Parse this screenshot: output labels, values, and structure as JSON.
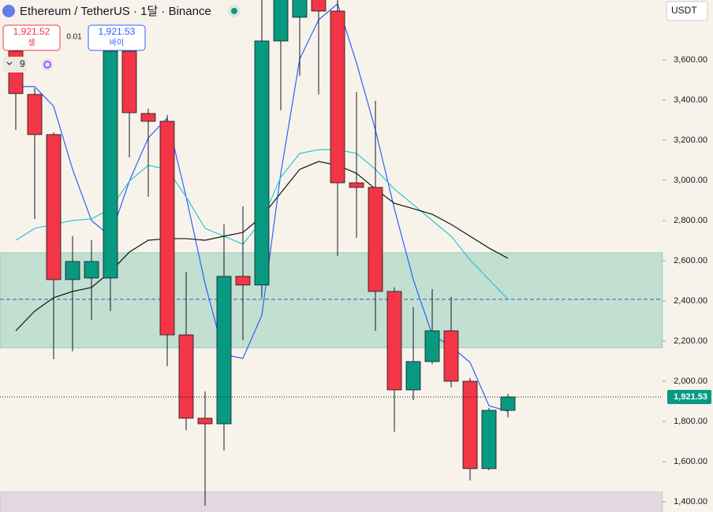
{
  "header": {
    "title": "Ethereum / TetherUS · 1달 · Binance",
    "sell_price": "1,921.52",
    "sell_label": "셀",
    "spread": "0.01",
    "buy_price": "1,921.53",
    "buy_label": "바이",
    "indicator_count": "9",
    "currency": "USDT"
  },
  "chart_data": {
    "type": "candlestick",
    "ylim": [
      1349,
      3898
    ],
    "yticks": [
      {
        "value": 1400,
        "label": "1,400.00"
      },
      {
        "value": 1600,
        "label": "1,600.00"
      },
      {
        "value": 1800,
        "label": "1,800.00"
      },
      {
        "value": 2000,
        "label": "2,000.00"
      },
      {
        "value": 2200,
        "label": "2,200.00"
      },
      {
        "value": 2400,
        "label": "2,400.00"
      },
      {
        "value": 2600,
        "label": "2,600.00"
      },
      {
        "value": 2800,
        "label": "2,800.00"
      },
      {
        "value": 3000,
        "label": "3,000.00"
      },
      {
        "value": 3200,
        "label": "3,200.00"
      },
      {
        "value": 3400,
        "label": "3,400.00"
      },
      {
        "value": 3600,
        "label": "3,600.00"
      }
    ],
    "up_color": "#089981",
    "down_color": "#f23645",
    "candles": [
      {
        "open": 3643,
        "high": 3683,
        "low": 3251,
        "close": 3432
      },
      {
        "open": 3428,
        "high": 3459,
        "low": 2808,
        "close": 3228
      },
      {
        "open": 3228,
        "high": 3239,
        "low": 2110,
        "close": 2506
      },
      {
        "open": 2506,
        "high": 2722,
        "low": 2149,
        "close": 2596
      },
      {
        "open": 2514,
        "high": 2702,
        "low": 2306,
        "close": 2596
      },
      {
        "open": 2514,
        "high": 3742,
        "low": 2349,
        "close": 3643
      },
      {
        "open": 3643,
        "high": 3742,
        "low": 3114,
        "close": 3337
      },
      {
        "open": 3333,
        "high": 3357,
        "low": 2918,
        "close": 3294
      },
      {
        "open": 3294,
        "high": 3326,
        "low": 2075,
        "close": 2231
      },
      {
        "open": 2231,
        "high": 2545,
        "low": 1757,
        "close": 1816
      },
      {
        "open": 1816,
        "high": 1949,
        "low": 1380,
        "close": 1788
      },
      {
        "open": 1788,
        "high": 2781,
        "low": 1655,
        "close": 2522
      },
      {
        "open": 2522,
        "high": 2871,
        "low": 2204,
        "close": 2479
      },
      {
        "open": 2479,
        "high": 3900,
        "low": 2416,
        "close": 3694
      },
      {
        "open": 3694,
        "high": 3950,
        "low": 3349,
        "close": 3920
      },
      {
        "open": 3812,
        "high": 3960,
        "low": 3520,
        "close": 3930
      },
      {
        "open": 3930,
        "high": 3960,
        "low": 3428,
        "close": 3843
      },
      {
        "open": 3843,
        "high": 3900,
        "low": 2624,
        "close": 2988
      },
      {
        "open": 2988,
        "high": 3439,
        "low": 2714,
        "close": 2965
      },
      {
        "open": 2965,
        "high": 3396,
        "low": 2251,
        "close": 2447
      },
      {
        "open": 2447,
        "high": 2467,
        "low": 1749,
        "close": 1957
      },
      {
        "open": 1957,
        "high": 2369,
        "low": 1906,
        "close": 2098
      },
      {
        "open": 2098,
        "high": 2459,
        "low": 2086,
        "close": 2251
      },
      {
        "open": 2251,
        "high": 2420,
        "low": 1969,
        "close": 2000
      },
      {
        "open": 2000,
        "high": 2016,
        "low": 1506,
        "close": 1565
      },
      {
        "open": 1565,
        "high": 1867,
        "low": 1557,
        "close": 1855
      },
      {
        "open": 1855,
        "high": 1937,
        "low": 1820,
        "close": 1921.53
      }
    ],
    "series": [
      {
        "color": "#2962ff",
        "values": [
          3467,
          3467,
          3369,
          3055,
          2800,
          2722,
          2996,
          3212,
          3310,
          2918,
          2486,
          2133,
          2114,
          2329,
          3035,
          3604,
          3800,
          3879,
          3585,
          3251,
          2859,
          2506,
          2231,
          2173,
          2094,
          1878,
          1851
        ]
      },
      {
        "color": "#26c6da",
        "values": [
          2702,
          2761,
          2781,
          2800,
          2808,
          2859,
          2996,
          3075,
          3055,
          2918,
          2761,
          2722,
          2682,
          2800,
          3016,
          3134,
          3153,
          3153,
          3134,
          3055,
          2957,
          2879,
          2800,
          2722,
          2604,
          2506,
          2408
        ]
      },
      {
        "color": "#0b1a10",
        "values": [
          2251,
          2349,
          2416,
          2447,
          2467,
          2545,
          2643,
          2702,
          2710,
          2710,
          2702,
          2722,
          2741,
          2820,
          2937,
          3055,
          3094,
          3075,
          3035,
          2957,
          2886,
          2859,
          2831,
          2781,
          2722,
          2663,
          2612
        ]
      }
    ],
    "zones": [
      {
        "low": 2166,
        "high": 2640,
        "color": "#089981"
      },
      {
        "low": 1300,
        "high": 1449,
        "color": "#9c7bc4"
      }
    ],
    "hline": {
      "value": 2408,
      "color": "#3f51b5"
    },
    "last_price": {
      "value": 1921.53,
      "label": "1,921.53"
    }
  }
}
